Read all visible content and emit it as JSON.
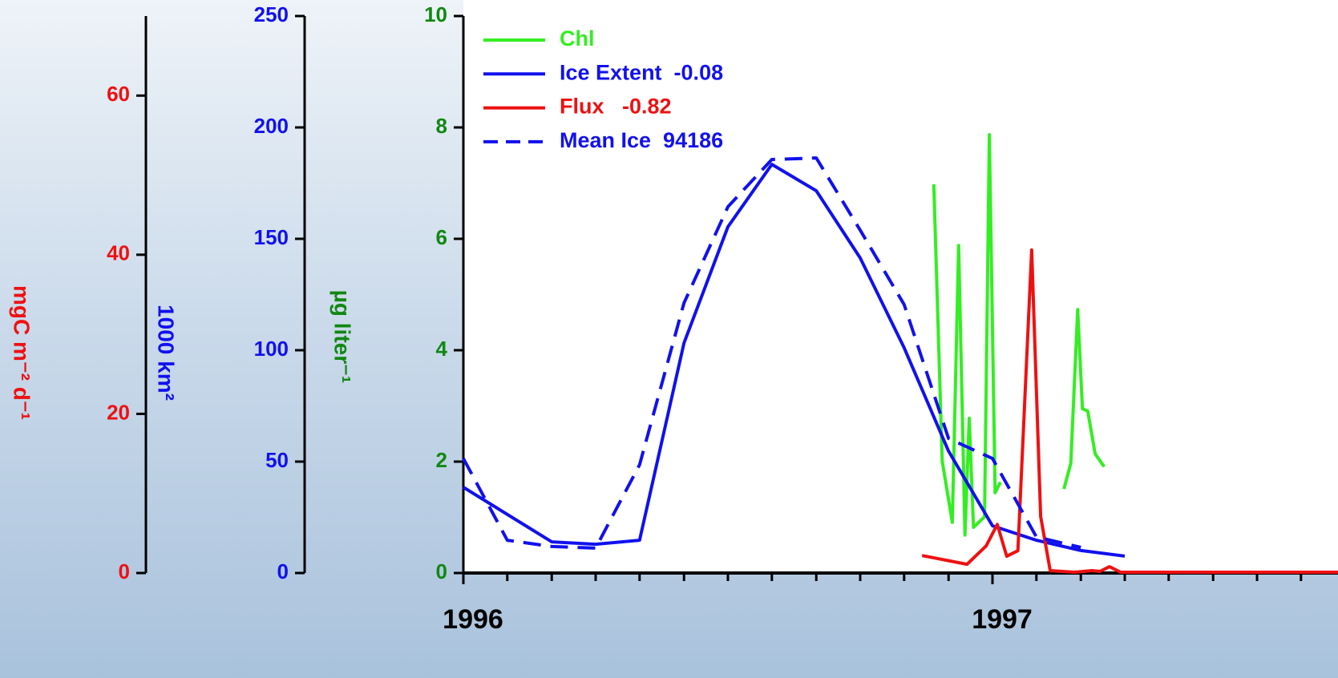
{
  "chart_data": {
    "type": "line",
    "xlim": [
      1996,
      1997.653
    ],
    "xticks": [
      1996,
      1997
    ],
    "xminorticks": [
      1996.083,
      1996.167,
      1996.25,
      1996.333,
      1996.417,
      1996.5,
      1996.583,
      1996.667,
      1996.75,
      1996.833,
      1996.917,
      1997.083,
      1997.167,
      1997.25,
      1997.333,
      1997.417,
      1997.5,
      1997.583
    ],
    "ylim": [
      0,
      10
    ],
    "yticks": [
      0,
      2,
      4,
      6,
      8,
      10
    ],
    "ylabel": "µg liter⁻¹",
    "ycolor": "#118811",
    "y2lim": [
      0,
      250
    ],
    "y2ticks": [
      0,
      50,
      100,
      150,
      200,
      250
    ],
    "y2label": "1000 km²",
    "y2color": "#1111ee",
    "y3lim": [
      0,
      70
    ],
    "y3ticks": [
      0,
      20,
      40,
      60
    ],
    "y3label": "mgC m⁻² d⁻¹",
    "y3color": "#ee1111",
    "series": [
      {
        "name": "Chl",
        "color": "#33ee22",
        "axis": "y",
        "dash": false,
        "x": [
          1996.889,
          1996.905,
          1996.924,
          1996.936,
          1996.948,
          1996.956,
          1996.964,
          1996.985,
          1996.994,
          1997.005,
          1997.015,
          null,
          1997.135,
          1997.148,
          1997.161,
          1997.17,
          1997.18,
          1997.194,
          1997.211
        ],
        "values": [
          6.98,
          2.01,
          0.91,
          5.88,
          0.68,
          2.78,
          0.82,
          1.01,
          7.87,
          1.44,
          1.63,
          null,
          1.51,
          1.97,
          4.73,
          2.95,
          2.91,
          2.14,
          1.91
        ]
      },
      {
        "name": "Ice Extent  -0.08",
        "color": "#1111ee",
        "axis": "y2",
        "dash": false,
        "x": [
          1996,
          1996.167,
          1996.25,
          1996.333,
          1996.417,
          1996.5,
          1996.583,
          1996.667,
          1996.75,
          1996.833,
          1996.917,
          1997,
          1997.083,
          1997.167,
          1997.25
        ],
        "values": [
          38.5,
          14.0,
          12.9,
          14.7,
          103.2,
          155.4,
          183.4,
          171.6,
          141.4,
          101.1,
          54.7,
          21.2,
          14.7,
          10.1,
          7.6
        ]
      },
      {
        "name": "Flux   -0.82",
        "color": "#ee1111",
        "axis": "y3",
        "dash": false,
        "x": [
          1996.867,
          1996.952,
          1996.988,
          1997.009,
          1997.027,
          1997.048,
          1997.074,
          1997.091,
          1997.109,
          1997.155,
          1997.188,
          1997.203,
          1997.221,
          1997.242,
          1997.653
        ],
        "values": [
          2.2,
          1.1,
          3.4,
          6.1,
          2.1,
          2.8,
          40.6,
          7.1,
          0.3,
          0.1,
          0.3,
          0.2,
          0.8,
          0.1,
          0.1
        ]
      },
      {
        "name": "Mean Ice  94186",
        "color": "#1111ee",
        "axis": "y2",
        "dash": true,
        "x": [
          1996,
          1996.083,
          1996.167,
          1996.25,
          1996.333,
          1996.417,
          1996.5,
          1996.583,
          1996.667,
          1996.75,
          1996.833,
          1996.917,
          1997,
          1997.083,
          1997.167
        ],
        "values": [
          51.4,
          14.7,
          11.9,
          11.2,
          48.6,
          121.2,
          164.4,
          185.6,
          186.3,
          153.9,
          120.5,
          60.4,
          51.4,
          16.2,
          11.5
        ]
      }
    ]
  }
}
